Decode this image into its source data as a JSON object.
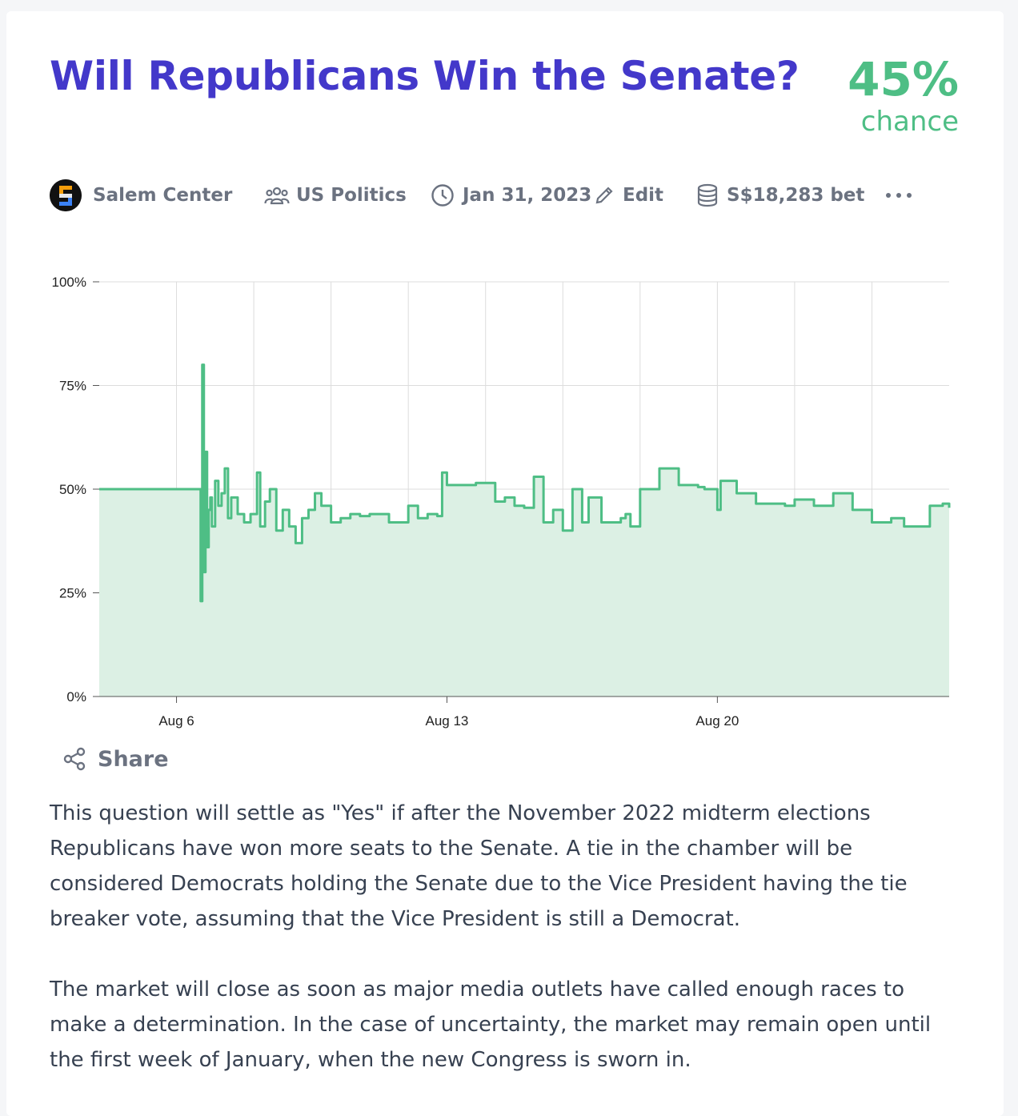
{
  "market": {
    "title": "Will Republicans Win the Senate?",
    "probability": "45%",
    "probability_label": "chance"
  },
  "meta": {
    "creator": "Salem Center",
    "group": "US Politics",
    "close_date": "Jan 31, 2023",
    "edit_label": "Edit",
    "volume": "S$18,283 bet",
    "avatar_icon": "salem-center-logo",
    "group_icon": "users-icon",
    "date_icon": "clock-icon",
    "edit_icon": "pencil-icon",
    "volume_icon": "database-icon",
    "more_icon": "ellipsis-icon"
  },
  "share": {
    "label": "Share",
    "icon": "share-icon"
  },
  "description": [
    "This question will settle as \"Yes\" if after the November 2022 midterm elections Republicans have won more seats to the Senate. A tie in the chamber will be considered Democrats holding the Senate due to the Vice President having the tie breaker vote, assuming that the Vice President is still a Democrat.",
    "The market will close as soon as major media outlets have called enough races to make a determination. In the case of uncertainty, the market may remain open until the first week of January, when the new Congress is sworn in."
  ],
  "colors": {
    "title": "#4338ca",
    "probability": "#4ebe85",
    "line": "#4ebe85",
    "fill": "#dcf0e4",
    "muted": "#6b7280"
  },
  "chart_data": {
    "type": "area",
    "step": true,
    "x_start": "2022-08-04",
    "x_end": "2022-08-26",
    "ylim": [
      0,
      100
    ],
    "yticks": [
      0,
      25,
      50,
      75,
      100
    ],
    "ytick_labels": [
      "0%",
      "25%",
      "50%",
      "75%",
      "100%"
    ],
    "xticks": [
      {
        "date": "2022-08-06",
        "label": "Aug 6"
      },
      {
        "date": "2022-08-13",
        "label": "Aug 13"
      },
      {
        "date": "2022-08-20",
        "label": "Aug 20"
      }
    ],
    "grid": true,
    "x": [
      "2022-08-04T00:00",
      "2022-08-06T15:00",
      "2022-08-06T16:00",
      "2022-08-06T17:00",
      "2022-08-06T18:00",
      "2022-08-06T19:00",
      "2022-08-06T20:00",
      "2022-08-06T21:00",
      "2022-08-06T22:00",
      "2022-08-07T00:00",
      "2022-08-07T02:00",
      "2022-08-07T04:00",
      "2022-08-07T06:00",
      "2022-08-07T08:00",
      "2022-08-07T10:00",
      "2022-08-07T14:00",
      "2022-08-07T18:00",
      "2022-08-07T22:00",
      "2022-08-08T02:00",
      "2022-08-08T04:00",
      "2022-08-08T07:00",
      "2022-08-08T10:00",
      "2022-08-08T14:00",
      "2022-08-08T18:00",
      "2022-08-08T22:00",
      "2022-08-09T02:00",
      "2022-08-09T06:00",
      "2022-08-09T10:00",
      "2022-08-09T14:00",
      "2022-08-09T18:00",
      "2022-08-10T00:00",
      "2022-08-10T06:00",
      "2022-08-10T12:00",
      "2022-08-10T18:00",
      "2022-08-11T00:00",
      "2022-08-11T12:00",
      "2022-08-12T00:00",
      "2022-08-12T06:00",
      "2022-08-12T12:00",
      "2022-08-12T18:00",
      "2022-08-12T21:00",
      "2022-08-13T00:00",
      "2022-08-13T18:00",
      "2022-08-14T06:00",
      "2022-08-14T12:00",
      "2022-08-14T18:00",
      "2022-08-15T00:00",
      "2022-08-15T06:00",
      "2022-08-15T12:00",
      "2022-08-15T18:00",
      "2022-08-16T00:00",
      "2022-08-16T06:00",
      "2022-08-16T12:00",
      "2022-08-16T16:00",
      "2022-08-17T00:00",
      "2022-08-17T12:00",
      "2022-08-17T15:00",
      "2022-08-17T18:00",
      "2022-08-18T00:00",
      "2022-08-18T12:00",
      "2022-08-19T00:00",
      "2022-08-19T12:00",
      "2022-08-19T16:00",
      "2022-08-20T00:00",
      "2022-08-20T02:00",
      "2022-08-20T12:00",
      "2022-08-21T00:00",
      "2022-08-21T18:00",
      "2022-08-22T00:00",
      "2022-08-22T12:00",
      "2022-08-23T00:00",
      "2022-08-23T12:00",
      "2022-08-24T00:00",
      "2022-08-24T12:00",
      "2022-08-24T20:00",
      "2022-08-25T12:00",
      "2022-08-25T20:00",
      "2022-08-26T00:00"
    ],
    "values": [
      50,
      23,
      80,
      30,
      59,
      36,
      45,
      48,
      41,
      52,
      46,
      49,
      55,
      43,
      48,
      44,
      42,
      44,
      54,
      41,
      47,
      50,
      40,
      45,
      41,
      37,
      43,
      45,
      49,
      46,
      42,
      43,
      44,
      43.5,
      44,
      42,
      46,
      43,
      44,
      43.5,
      54,
      51,
      51.5,
      47,
      48,
      46,
      45.5,
      53,
      42,
      45,
      40,
      50,
      42,
      48,
      42,
      43,
      44,
      41,
      50,
      55,
      51,
      50.5,
      50,
      45,
      52,
      49,
      46.5,
      46,
      47.5,
      46,
      49,
      45,
      42,
      43,
      41,
      46,
      46.5,
      45.5
    ]
  }
}
